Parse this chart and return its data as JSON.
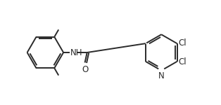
{
  "background_color": "#ffffff",
  "line_color": "#2a2a2a",
  "line_width": 1.4,
  "font_size_label": 8.5,
  "xlim": [
    0,
    10
  ],
  "ylim": [
    0,
    4.2
  ],
  "labels": {
    "NH": "NH",
    "O": "O",
    "N": "N",
    "Cl1": "Cl",
    "Cl2": "Cl"
  }
}
